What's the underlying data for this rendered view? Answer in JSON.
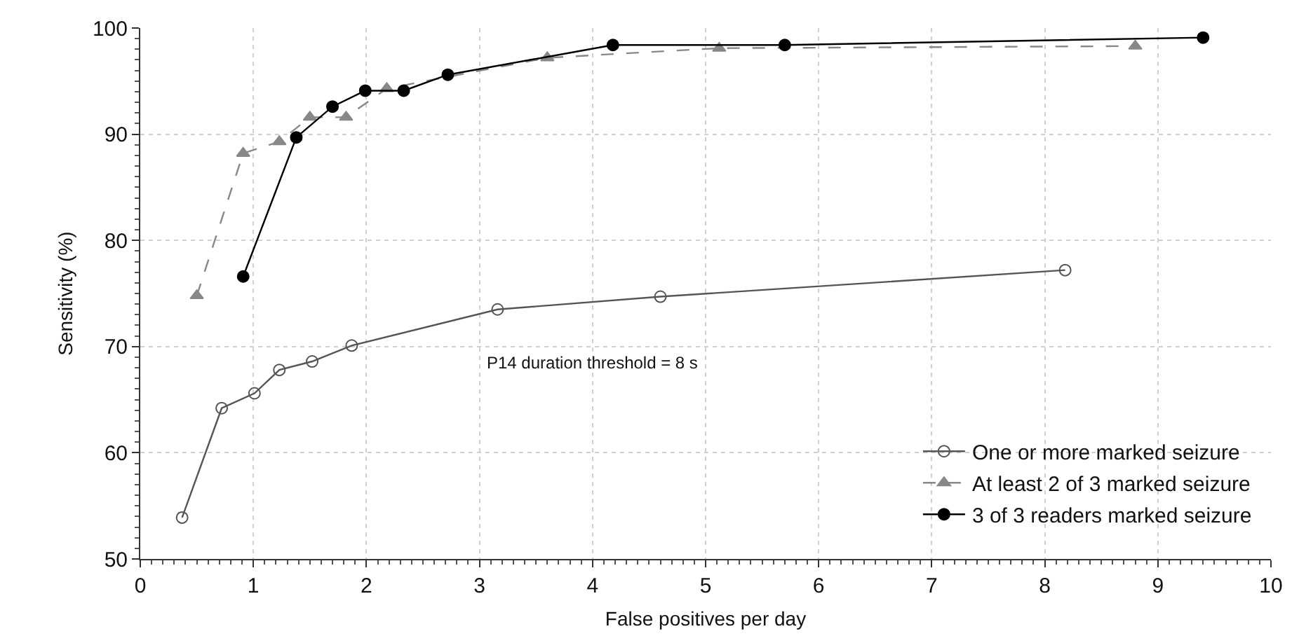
{
  "chart_data": {
    "type": "line",
    "xlabel": "False positives per day",
    "ylabel": "Sensitivity (%)",
    "xlim": [
      0,
      10
    ],
    "xticks": [
      0,
      1,
      2,
      3,
      4,
      5,
      6,
      7,
      8,
      9,
      10
    ],
    "ylim": [
      50,
      100
    ],
    "yticks": [
      50,
      60,
      70,
      80,
      90,
      100
    ],
    "grid": true,
    "legend": "bottom right",
    "annotations": [
      "P14 duration threshold = 8 s"
    ],
    "series": [
      {
        "name": "One or more marked seizure",
        "color": "#555555",
        "marker": "circle",
        "line_style": "solid",
        "x": [
          0.37,
          0.72,
          1.01,
          1.23,
          1.52,
          1.87,
          3.16,
          4.6,
          8.18
        ],
        "values": [
          53.9,
          64.2,
          65.6,
          67.8,
          68.6,
          70.1,
          73.5,
          74.7,
          77.2
        ]
      },
      {
        "name": "At least 2 of 3 marked seizure",
        "color": "#888888",
        "marker": "triangle",
        "line_style": "dashed",
        "x": [
          0.5,
          0.91,
          1.23,
          1.5,
          1.82,
          2.18,
          3.6,
          5.12,
          8.8
        ],
        "values": [
          74.8,
          88.2,
          89.3,
          91.6,
          91.6,
          94.3,
          97.2,
          98.1,
          98.3
        ]
      },
      {
        "name": "3 of 3 readers marked seizure",
        "color": "#000000",
        "marker": "circle",
        "line_style": "solid",
        "x": [
          0.91,
          1.38,
          1.7,
          1.99,
          2.33,
          2.72,
          4.18,
          5.7,
          9.4
        ],
        "values": [
          76.6,
          89.7,
          92.6,
          94.1,
          94.1,
          95.6,
          98.4,
          98.4,
          99.1
        ]
      }
    ]
  }
}
